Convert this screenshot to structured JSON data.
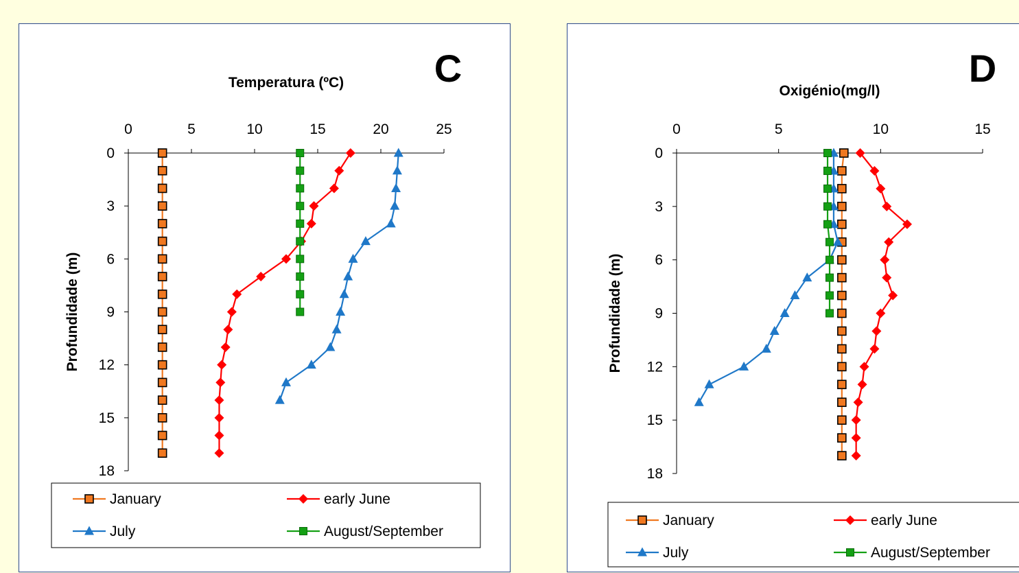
{
  "colors": {
    "background": "#ffffe0",
    "panel_border": "#2e4a8c",
    "January": "#f07820",
    "early June": "#ff0000",
    "July": "#1f78c8",
    "August/September": "#14a014"
  },
  "chart_data": [
    {
      "type": "line",
      "panel": "C",
      "title": "Temperatura (ºC)",
      "xlabel": "Temperatura (ºC)",
      "ylabel": "Profundidade (m)",
      "xlim": [
        0,
        25
      ],
      "ylim": [
        0,
        18
      ],
      "y_inverted": true,
      "x_axis_position": "top",
      "xticks": [
        0,
        5,
        10,
        15,
        20,
        25
      ],
      "yticks": [
        0,
        3,
        6,
        9,
        12,
        15,
        18
      ],
      "legend": {
        "placement": "bottom",
        "entries": [
          "January",
          "early June",
          "July",
          "August/September"
        ]
      },
      "series": [
        {
          "name": "January",
          "marker": "square-hollow",
          "x": [
            2.7,
            2.7,
            2.7,
            2.7,
            2.7,
            2.7,
            2.7,
            2.7,
            2.7,
            2.7,
            2.7,
            2.7,
            2.7,
            2.7,
            2.7,
            2.7,
            2.7,
            2.7
          ],
          "y": [
            0,
            1,
            2,
            3,
            4,
            5,
            6,
            7,
            8,
            9,
            10,
            11,
            12,
            13,
            14,
            15,
            16,
            17
          ]
        },
        {
          "name": "early June",
          "marker": "diamond",
          "x": [
            17.6,
            16.7,
            16.3,
            14.7,
            14.5,
            13.7,
            12.5,
            10.5,
            8.6,
            8.2,
            7.9,
            7.7,
            7.4,
            7.3,
            7.2,
            7.2,
            7.2,
            7.2
          ],
          "y": [
            0,
            1,
            2,
            3,
            4,
            5,
            6,
            7,
            8,
            9,
            10,
            11,
            12,
            13,
            14,
            15,
            16,
            17
          ]
        },
        {
          "name": "July",
          "marker": "triangle",
          "x": [
            21.4,
            21.3,
            21.2,
            21.1,
            20.8,
            18.8,
            17.8,
            17.4,
            17.1,
            16.8,
            16.5,
            16.0,
            14.5,
            12.5,
            12.0
          ],
          "y": [
            0,
            1,
            2,
            3,
            4,
            5,
            6,
            7,
            8,
            9,
            10,
            11,
            12,
            13,
            14
          ]
        },
        {
          "name": "August/September",
          "marker": "square",
          "x": [
            13.6,
            13.6,
            13.6,
            13.6,
            13.6,
            13.6,
            13.6,
            13.6,
            13.6,
            13.6
          ],
          "y": [
            0,
            1,
            2,
            3,
            4,
            5,
            6,
            7,
            8,
            9
          ]
        }
      ]
    },
    {
      "type": "line",
      "panel": "D",
      "title": "Oxigénio(mg/l)",
      "xlabel": "Oxigénio(mg/l)",
      "ylabel": "Profundidade (m)",
      "xlim": [
        0,
        15
      ],
      "ylim": [
        0,
        18
      ],
      "y_inverted": true,
      "x_axis_position": "top",
      "xticks": [
        0,
        5,
        10,
        15
      ],
      "yticks": [
        0,
        3,
        6,
        9,
        12,
        15,
        18
      ],
      "legend": {
        "placement": "bottom",
        "entries": [
          "January",
          "early June",
          "July",
          "August/September"
        ]
      },
      "series": [
        {
          "name": "January",
          "marker": "square-hollow",
          "x": [
            8.2,
            8.1,
            8.1,
            8.1,
            8.1,
            8.1,
            8.1,
            8.1,
            8.1,
            8.1,
            8.1,
            8.1,
            8.1,
            8.1,
            8.1,
            8.1,
            8.1,
            8.1
          ],
          "y": [
            0,
            1,
            2,
            3,
            4,
            5,
            6,
            7,
            8,
            9,
            10,
            11,
            12,
            13,
            14,
            15,
            16,
            17
          ]
        },
        {
          "name": "early June",
          "marker": "diamond",
          "x": [
            9.0,
            9.7,
            10.0,
            10.3,
            11.3,
            10.4,
            10.2,
            10.3,
            10.6,
            10.0,
            9.8,
            9.7,
            9.2,
            9.1,
            8.9,
            8.8,
            8.8,
            8.8
          ],
          "y": [
            0,
            1,
            2,
            3,
            4,
            5,
            6,
            7,
            8,
            9,
            10,
            11,
            12,
            13,
            14,
            15,
            16,
            17
          ]
        },
        {
          "name": "July",
          "marker": "triangle",
          "x": [
            7.7,
            7.7,
            7.7,
            7.7,
            7.7,
            7.9,
            7.5,
            6.4,
            5.8,
            5.3,
            4.8,
            4.4,
            3.3,
            1.6,
            1.1
          ],
          "y": [
            0,
            1,
            2,
            3,
            4,
            5,
            6,
            7,
            8,
            9,
            10,
            11,
            12,
            13,
            14
          ]
        },
        {
          "name": "August/September",
          "marker": "square",
          "x": [
            7.4,
            7.4,
            7.4,
            7.4,
            7.4,
            7.5,
            7.5,
            7.5,
            7.5,
            7.5
          ],
          "y": [
            0,
            1,
            2,
            3,
            4,
            5,
            6,
            7,
            8,
            9
          ]
        }
      ]
    }
  ]
}
